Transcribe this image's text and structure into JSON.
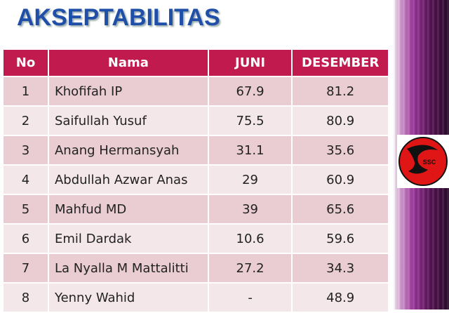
{
  "title": "AKSEPTABILITAS",
  "logo": {
    "text": "SSC"
  },
  "table": {
    "header": [
      "No",
      "Nama",
      "JUNI",
      "DESEMBER"
    ],
    "rows": [
      [
        "1",
        "Khofifah IP",
        "67.9",
        "81.2"
      ],
      [
        "2",
        "Saifullah Yusuf",
        "75.5",
        "80.9"
      ],
      [
        "3",
        "Anang Hermansyah",
        "31.1",
        "35.6"
      ],
      [
        "4",
        "Abdullah Azwar Anas",
        "29",
        "60.9"
      ],
      [
        "5",
        "Mahfud MD",
        "39",
        "65.6"
      ],
      [
        "6",
        "Emil Dardak",
        "10.6",
        "59.6"
      ],
      [
        "7",
        "La Nyalla M Mattalitti",
        "27.2",
        "34.3"
      ],
      [
        "8",
        "Yenny Wahid",
        "-",
        "48.9"
      ]
    ]
  }
}
